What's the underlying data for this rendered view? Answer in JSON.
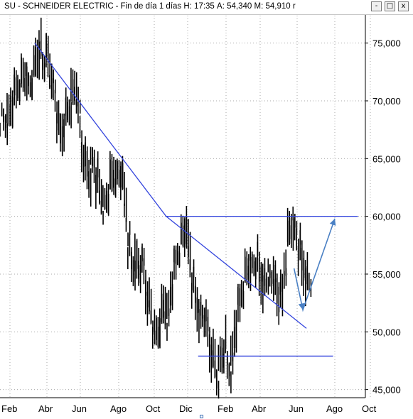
{
  "window": {
    "title": {
      "symbol": "SU",
      "name": "SCHNEIDER ELECTRIC",
      "period": "Fin de día 1 días",
      "high": "H: 17:35",
      "last": "A: 54,340",
      "mid": "M: 54,910",
      "trail": "r"
    },
    "buttons": {
      "minimize": "-",
      "maximize": "□",
      "close": "x"
    }
  },
  "colors": {
    "price": "#000000",
    "trendline": "#3344dd",
    "projection": "#4a80c4",
    "grid": "#aaaaaa",
    "plot_bg": "#ffffff"
  },
  "chart_data": {
    "type": "line",
    "x_ticks": [
      "Feb",
      "Abr",
      "Jun",
      "Ago",
      "Oct",
      "Dic",
      "Feb",
      "Abr",
      "Jun",
      "Ago",
      "Oct"
    ],
    "y_ticks": [
      "45,000",
      "50,000",
      "55,000",
      "60,000",
      "65,000",
      "70,000",
      "75,000"
    ],
    "y_tick_values": [
      45,
      50,
      55,
      60,
      65,
      70,
      75
    ],
    "ylim": [
      44.3,
      77.5
    ],
    "xlim": [
      0,
      21.3
    ],
    "grid": true,
    "series": [
      {
        "style": "price-bars",
        "x": [
          0.0,
          0.2,
          0.4,
          0.6,
          0.8,
          1.0,
          1.2,
          1.4,
          1.6,
          1.8,
          2.0,
          2.2,
          2.4,
          2.6,
          2.8,
          3.0,
          3.2,
          3.4,
          3.6,
          3.8,
          4.0,
          4.2,
          4.4,
          4.6,
          4.8,
          5.0,
          5.2,
          5.4,
          5.6,
          5.8,
          6.0,
          6.2,
          6.4,
          6.6,
          6.8,
          7.0,
          7.2,
          7.4,
          7.6,
          7.8,
          8.0,
          8.2,
          8.4,
          8.6,
          8.8,
          9.0,
          9.2,
          9.4,
          9.6,
          9.8,
          10.0,
          10.2,
          10.4,
          10.6,
          10.8,
          11.0,
          11.2,
          11.4,
          11.6,
          11.8,
          12.0,
          12.2,
          12.4,
          12.6,
          12.8,
          13.0,
          13.2,
          13.4,
          13.6,
          13.8,
          14.0,
          14.2,
          14.4,
          14.6,
          14.8
        ],
        "y": [
          68.5,
          68.0,
          69.5,
          70.5,
          71.5,
          72.0,
          72.5,
          71.0,
          72.0,
          73.5,
          74.8,
          73.0,
          74.0,
          72.5,
          71.0,
          69.0,
          66.5,
          68.5,
          69.0,
          70.0,
          71.5,
          69.0,
          66.0,
          64.5,
          63.5,
          65.0,
          63.5,
          62.0,
          60.5,
          61.5,
          63.0,
          64.0,
          63.0,
          64.5,
          61.0,
          58.0,
          55.5,
          56.0,
          55.5,
          56.0,
          54.0,
          52.0,
          50.5,
          49.5,
          51.0,
          52.5,
          50.5,
          53.5,
          55.5,
          57.0,
          58.0,
          59.5,
          57.0,
          54.5,
          53.0,
          51.0,
          52.0,
          50.5,
          49.0,
          47.5,
          46.0,
          47.5,
          49.0,
          47.0,
          46.5,
          50.0,
          52.0,
          53.5,
          55.0,
          56.0,
          55.5,
          56.5,
          55.0,
          54.0,
          54.5
        ]
      },
      {
        "style": "price-bars-2",
        "x": [
          15.0,
          15.2,
          15.4,
          15.6,
          15.8,
          16.0,
          16.2,
          16.4,
          16.6,
          16.8,
          17.0,
          17.2
        ],
        "y": [
          55.0,
          54.5,
          53.5,
          52.5,
          55.5,
          58.5,
          59.5,
          59.0,
          57.5,
          56.0,
          54.5,
          54.3
        ]
      },
      {
        "style": "trendline",
        "x": [
          1.8,
          9.2,
          17.1
        ],
        "y": [
          75.0,
          60.0,
          50.3
        ]
      },
      {
        "style": "resistance",
        "x": [
          9.2,
          20.0
        ],
        "y": [
          60.0,
          60.0
        ]
      },
      {
        "style": "support",
        "x": [
          11.0,
          18.6
        ],
        "y": [
          47.9,
          47.9
        ]
      },
      {
        "style": "projection",
        "x": [
          16.4,
          16.9,
          18.7
        ],
        "y": [
          55.5,
          51.9,
          59.8
        ]
      }
    ]
  }
}
